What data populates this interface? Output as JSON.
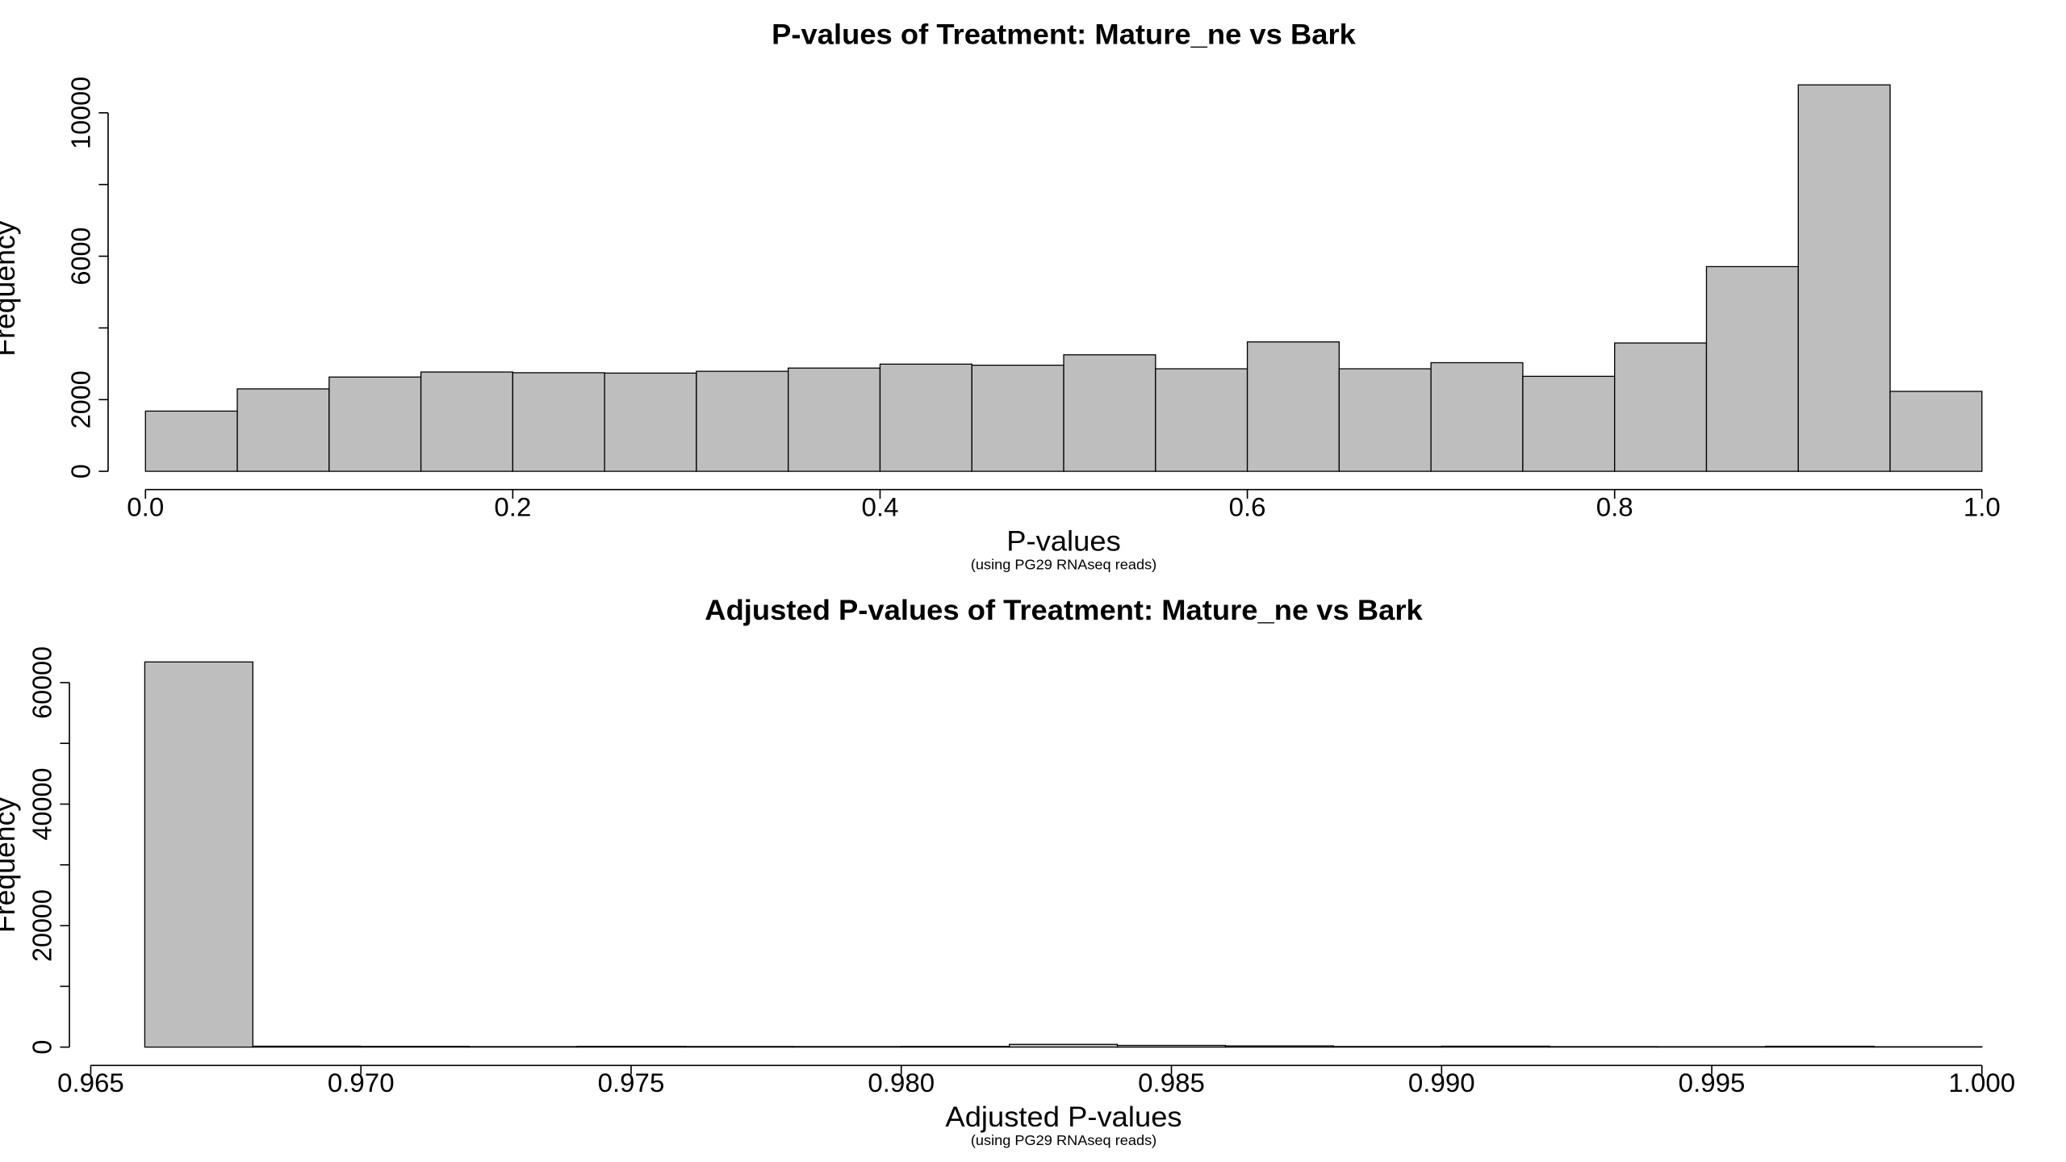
{
  "chart_data": [
    {
      "type": "histogram",
      "title": "P-values of Treatment: Mature_ne vs Bark",
      "x_label": "P-values",
      "subtitle": "(using PG29 RNAseq reads)",
      "y_label": "Frequency",
      "bins": [
        0,
        0.05,
        0.1,
        0.15,
        0.2,
        0.25,
        0.3,
        0.35,
        0.4,
        0.45,
        0.5,
        0.55,
        0.6,
        0.65,
        0.7,
        0.75,
        0.8,
        0.85,
        0.9,
        0.95,
        1
      ],
      "values": [
        1680,
        2300,
        2630,
        2770,
        2750,
        2740,
        2790,
        2880,
        2990,
        2960,
        3250,
        2860,
        3610,
        2860,
        3030,
        2650,
        3580,
        5710,
        10780,
        2230
      ],
      "color": "#bebebe",
      "xlim": [
        0,
        1
      ],
      "xticks": [
        {
          "value": 0,
          "label": "0.0"
        },
        0.2,
        0.4,
        0.6,
        0.8,
        {
          "value": 1,
          "label": "1.0"
        }
      ],
      "ylim": [
        0,
        10780
      ],
      "yticks": [
        0,
        2000,
        6000,
        10000
      ],
      "yticks_unlabeled": [
        4000,
        8000
      ]
    },
    {
      "type": "histogram",
      "title": "Adjusted P-values of Treatment: Mature_ne vs Bark",
      "x_label": "Adjusted P-values",
      "subtitle": "(using PG29 RNAseq reads)",
      "y_label": "Frequency",
      "bins": [
        0.966,
        0.968,
        0.97,
        0.972,
        0.974,
        0.976,
        0.978,
        0.98,
        0.982,
        0.984,
        0.986,
        0.988,
        0.99,
        0.992,
        0.994,
        0.996,
        0.998,
        1
      ],
      "values": [
        63400,
        150,
        120,
        80,
        120,
        100,
        90,
        110,
        450,
        280,
        200,
        100,
        150,
        80,
        70,
        140,
        60
      ],
      "color": "#bebebe",
      "xlim": [
        0.965,
        1
      ],
      "xticks": [
        0.965,
        {
          "value": 0.97,
          "label": "0.970"
        },
        0.975,
        {
          "value": 0.98,
          "label": "0.980"
        },
        0.985,
        {
          "value": 0.99,
          "label": "0.990"
        },
        0.995,
        {
          "value": 1,
          "label": "1.000"
        }
      ],
      "ylim": [
        0,
        63400
      ],
      "yticks": [
        0,
        20000,
        40000,
        60000
      ],
      "yticks_unlabeled": [
        10000,
        30000,
        50000
      ]
    }
  ]
}
